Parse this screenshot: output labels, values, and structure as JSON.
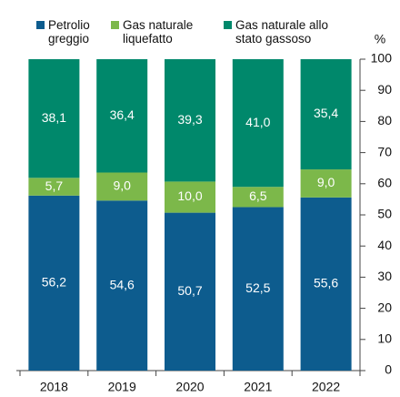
{
  "chart_data": {
    "type": "stacked_bar",
    "categories": [
      "2018",
      "2019",
      "2020",
      "2021",
      "2022"
    ],
    "series": [
      {
        "name": "Petrolio greggio",
        "color": "#0d5c8e",
        "values": [
          56.2,
          54.6,
          50.7,
          52.5,
          55.6
        ],
        "value_labels": [
          "56,2",
          "54,6",
          "50,7",
          "52,5",
          "55,6"
        ]
      },
      {
        "name": "Gas naturale liquefatto",
        "color": "#7cb84a",
        "values": [
          5.7,
          9.0,
          10.0,
          6.5,
          9.0
        ],
        "value_labels": [
          "5,7",
          "9,0",
          "10,0",
          "6,5",
          "9,0"
        ]
      },
      {
        "name": "Gas naturale allo stato gassoso",
        "color": "#00886b",
        "values": [
          38.1,
          36.4,
          39.3,
          41.0,
          35.4
        ],
        "value_labels": [
          "38,1",
          "36,4",
          "39,3",
          "41,0",
          "35,4"
        ]
      }
    ],
    "y_axis_label": "%",
    "ylim": [
      0,
      100
    ],
    "yticks": [
      0,
      10,
      20,
      30,
      40,
      50,
      60,
      70,
      80,
      90,
      100
    ],
    "legend": "top"
  }
}
